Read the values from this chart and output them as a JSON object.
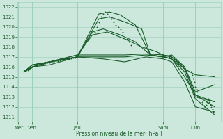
{
  "xlabel": "Pression niveau de la mer( hPa )",
  "ylim": [
    1010.5,
    1022.5
  ],
  "yticks": [
    1011,
    1012,
    1013,
    1014,
    1015,
    1016,
    1017,
    1018,
    1019,
    1020,
    1021,
    1022
  ],
  "bg_color": "#cce8dc",
  "grid_color": "#99ccbb",
  "line_color": "#1a5c2a",
  "figsize": [
    3.2,
    2.0
  ],
  "dpi": 100,
  "xlim": [
    0,
    9.5
  ],
  "xtick_pos": [
    0.05,
    0.7,
    2.8,
    6.8,
    8.3
  ],
  "xtick_labels": [
    "Mer",
    "Ven",
    "Jeu",
    "Sam",
    "Dim"
  ],
  "xline_pos": [
    0.05,
    0.7,
    2.8,
    6.8,
    8.3
  ],
  "series": [
    {
      "x": [
        0.3,
        0.7,
        1.5,
        2.8,
        3.8,
        4.3,
        4.8,
        5.5,
        6.2,
        6.8,
        7.2,
        7.8,
        8.3,
        9.2
      ],
      "y": [
        1015.5,
        1016.2,
        1016.5,
        1017.0,
        1021.3,
        1021.5,
        1021.2,
        1020.2,
        1017.2,
        1017.0,
        1016.8,
        1015.5,
        1012.8,
        1011.2
      ]
    },
    {
      "x": [
        0.3,
        0.7,
        1.5,
        2.8,
        3.8,
        4.3,
        5.0,
        5.8,
        6.2,
        6.8,
        7.2,
        7.8,
        8.3,
        9.2
      ],
      "y": [
        1015.5,
        1016.0,
        1016.5,
        1017.0,
        1020.8,
        1021.0,
        1020.5,
        1019.8,
        1017.2,
        1017.0,
        1016.8,
        1015.8,
        1013.2,
        1012.0
      ]
    },
    {
      "x": [
        0.3,
        0.7,
        1.5,
        2.8,
        3.5,
        4.0,
        4.8,
        5.5,
        6.2,
        6.8,
        7.2,
        7.8,
        8.3,
        9.2
      ],
      "y": [
        1015.5,
        1016.0,
        1016.5,
        1017.0,
        1019.5,
        1019.8,
        1019.2,
        1018.5,
        1017.2,
        1017.0,
        1017.2,
        1016.0,
        1013.0,
        1012.5
      ]
    },
    {
      "x": [
        0.3,
        0.7,
        1.5,
        2.8,
        3.5,
        4.2,
        5.0,
        5.8,
        6.5,
        6.8,
        7.2,
        7.8,
        8.3,
        9.2
      ],
      "y": [
        1015.5,
        1016.2,
        1016.5,
        1017.2,
        1019.2,
        1019.5,
        1018.8,
        1018.0,
        1017.5,
        1017.2,
        1017.0,
        1016.0,
        1013.5,
        1014.2
      ]
    },
    {
      "x": [
        0.3,
        0.7,
        1.5,
        2.8,
        4.0,
        5.0,
        6.0,
        6.8,
        7.2,
        7.8,
        8.3,
        9.2
      ],
      "y": [
        1015.5,
        1016.2,
        1016.5,
        1017.2,
        1017.2,
        1017.2,
        1017.3,
        1017.2,
        1017.0,
        1015.8,
        1015.2,
        1015.0
      ]
    },
    {
      "x": [
        0.3,
        0.7,
        1.5,
        2.8,
        4.0,
        5.0,
        6.0,
        6.8,
        7.2,
        7.8,
        8.3,
        9.2
      ],
      "y": [
        1015.5,
        1016.0,
        1016.5,
        1017.0,
        1017.0,
        1017.0,
        1017.2,
        1017.0,
        1016.8,
        1015.0,
        1013.2,
        1012.5
      ]
    },
    {
      "x": [
        0.3,
        0.7,
        1.5,
        2.8,
        4.0,
        5.0,
        6.0,
        6.8,
        7.2,
        7.8,
        8.3,
        9.2
      ],
      "y": [
        1015.5,
        1016.0,
        1016.2,
        1017.0,
        1016.8,
        1016.5,
        1017.0,
        1016.8,
        1016.5,
        1014.5,
        1012.0,
        1011.5
      ]
    }
  ],
  "dot_clusters": [
    {
      "x": [
        0.3,
        0.4,
        0.5,
        0.55,
        0.6,
        0.65,
        0.7,
        0.8,
        0.9,
        1.0,
        1.1,
        1.2,
        1.3,
        1.4,
        1.5,
        1.6,
        1.7,
        1.8,
        1.9,
        2.0,
        2.1,
        2.2,
        2.3,
        2.4,
        2.5,
        2.6,
        2.7,
        2.8
      ],
      "y": [
        1015.5,
        1015.6,
        1015.7,
        1015.8,
        1015.9,
        1015.95,
        1016.0,
        1016.1,
        1016.15,
        1016.2,
        1016.25,
        1016.3,
        1016.35,
        1016.4,
        1016.45,
        1016.5,
        1016.52,
        1016.55,
        1016.6,
        1016.65,
        1016.68,
        1016.72,
        1016.75,
        1016.8,
        1016.85,
        1016.9,
        1016.95,
        1017.0
      ]
    },
    {
      "x": [
        3.6,
        3.7,
        3.8,
        3.9,
        4.0,
        4.1,
        4.2,
        4.3,
        4.4,
        4.5,
        4.6,
        4.7,
        4.8,
        4.9,
        5.0,
        5.1,
        5.2,
        5.3
      ],
      "y": [
        1019.5,
        1020.0,
        1020.5,
        1021.0,
        1021.3,
        1021.5,
        1021.3,
        1021.0,
        1020.8,
        1020.5,
        1020.2,
        1020.0,
        1019.8,
        1019.5,
        1019.2,
        1018.8,
        1018.5,
        1018.2
      ]
    },
    {
      "x": [
        6.8,
        6.9,
        7.0,
        7.05,
        7.1,
        7.15,
        7.2,
        7.3,
        7.4
      ],
      "y": [
        1017.2,
        1017.15,
        1017.1,
        1017.05,
        1017.0,
        1016.95,
        1016.9,
        1016.8,
        1016.7
      ]
    },
    {
      "x": [
        8.1,
        8.15,
        8.2,
        8.25,
        8.3,
        8.35,
        8.4,
        8.45,
        8.5,
        8.55,
        8.6,
        8.65,
        8.7,
        8.75,
        8.8,
        8.85,
        8.9,
        8.95,
        9.0,
        9.05,
        9.1,
        9.15,
        9.2
      ],
      "y": [
        1015.5,
        1015.2,
        1014.8,
        1014.5,
        1014.0,
        1013.8,
        1013.5,
        1013.2,
        1013.0,
        1012.8,
        1012.5,
        1012.3,
        1012.1,
        1012.0,
        1012.2,
        1012.5,
        1012.8,
        1012.5,
        1012.2,
        1012.0,
        1011.8,
        1011.5,
        1011.2
      ]
    }
  ]
}
